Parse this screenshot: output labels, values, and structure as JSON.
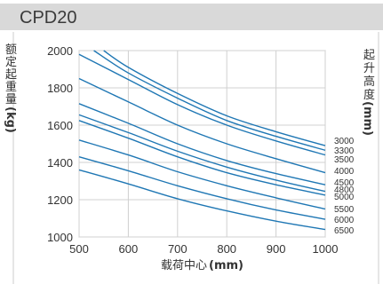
{
  "page_title": "CPD20",
  "chart_data": {
    "type": "line",
    "title": "CPD20",
    "xlabel_text": "载荷中心",
    "xlabel_unit": "(mm)",
    "ylabel_chars": [
      "额",
      "定",
      "起",
      "重",
      "量"
    ],
    "ylabel_unit": "(kg)",
    "y2label_chars": [
      "起",
      "升",
      "高",
      "度"
    ],
    "y2label_unit": "(mm)",
    "xlim": [
      500,
      1000
    ],
    "ylim": [
      1000,
      2000
    ],
    "xticks": [
      "500",
      "600",
      "700",
      "800",
      "900",
      "1000"
    ],
    "yticks": [
      "1000",
      "1200",
      "1400",
      "1600",
      "1800",
      "2000"
    ],
    "grid": true,
    "color": "#1f77b4",
    "series": [
      {
        "name": "3000",
        "x": [
          550,
          600,
          700,
          800,
          900,
          1000
        ],
        "y": [
          2000,
          1910,
          1770,
          1650,
          1565,
          1490
        ]
      },
      {
        "name": "3300",
        "x": [
          530,
          600,
          700,
          800,
          900,
          1000
        ],
        "y": [
          2000,
          1880,
          1745,
          1625,
          1540,
          1465
        ]
      },
      {
        "name": "3500",
        "x": [
          500,
          600,
          700,
          800,
          900,
          1000
        ],
        "y": [
          1980,
          1845,
          1710,
          1600,
          1515,
          1440
        ]
      },
      {
        "name": "4000",
        "x": [
          500,
          600,
          700,
          800,
          900,
          1000
        ],
        "y": [
          1850,
          1725,
          1600,
          1500,
          1420,
          1345
        ]
      },
      {
        "name": "4500",
        "x": [
          500,
          600,
          700,
          800,
          900,
          1000
        ],
        "y": [
          1715,
          1610,
          1500,
          1410,
          1340,
          1280
        ]
      },
      {
        "name": "4800",
        "x": [
          500,
          600,
          700,
          800,
          900,
          1000
        ],
        "y": [
          1655,
          1560,
          1460,
          1375,
          1305,
          1245
        ]
      },
      {
        "name": "5000",
        "x": [
          500,
          600,
          700,
          800,
          900,
          1000
        ],
        "y": [
          1625,
          1530,
          1430,
          1345,
          1280,
          1225
        ]
      },
      {
        "name": "5500",
        "x": [
          500,
          600,
          700,
          800,
          900,
          1000
        ],
        "y": [
          1520,
          1440,
          1350,
          1275,
          1210,
          1150
        ]
      },
      {
        "name": "6000",
        "x": [
          500,
          600,
          700,
          800,
          900,
          1000
        ],
        "y": [
          1430,
          1355,
          1275,
          1205,
          1145,
          1095
        ]
      },
      {
        "name": "6500",
        "x": [
          500,
          600,
          700,
          800,
          900,
          1000
        ],
        "y": [
          1360,
          1285,
          1205,
          1140,
          1085,
          1040
        ]
      }
    ]
  }
}
